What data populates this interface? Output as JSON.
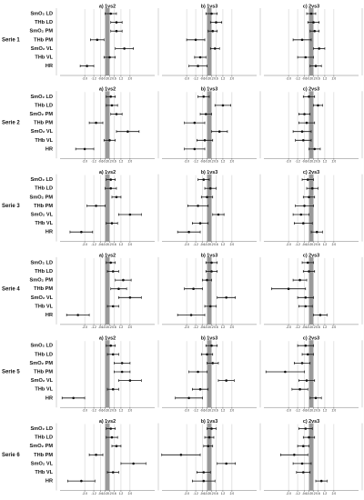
{
  "chart_data": [
    {
      "type": "forest",
      "title": "Serie 1",
      "categories": [
        "SmO₂ LD",
        "THb LD",
        "SmO₂ PM",
        "THb PM",
        "SmO₂ VL",
        "THb VL",
        "HR"
      ],
      "xlim": [
        -4.5,
        4.5
      ],
      "xticks": [
        {
          "value": -2,
          "label": "-2.0"
        },
        -1.2,
        -0.6,
        -0.2,
        0.2,
        0.6,
        1.2,
        {
          "value": 2,
          "label": "2.0"
        }
      ],
      "band": [
        -0.2,
        0.2
      ],
      "panels": [
        {
          "title": "a) 1vs2",
          "values": [
            0.3,
            0.8,
            0.8,
            -0.9,
            1.5,
            0.2,
            -1.8
          ],
          "lower": [
            -0.2,
            0.3,
            0.3,
            -1.5,
            0.7,
            -0.3,
            -2.4
          ],
          "upper": [
            0.8,
            1.3,
            1.3,
            -0.3,
            2.3,
            0.7,
            -1.2
          ]
        },
        {
          "title": "b) 1vs3",
          "values": [
            0.2,
            0.6,
            0.3,
            -1.2,
            0.5,
            -0.8,
            -1.0
          ],
          "lower": [
            -0.3,
            0.1,
            -0.1,
            -2.0,
            0.1,
            -1.3,
            -1.8
          ],
          "upper": [
            0.7,
            1.1,
            0.7,
            -0.4,
            0.9,
            -0.3,
            -0.2
          ]
        },
        {
          "title": "c) 2vs3",
          "values": [
            0,
            0.2,
            0.3,
            -0.8,
            0.7,
            -0.5,
            0.4
          ],
          "lower": [
            -0.4,
            -0.3,
            -0.1,
            -1.6,
            0.2,
            -1.2,
            -0.1
          ],
          "upper": [
            0.4,
            0.7,
            0.7,
            0,
            1.2,
            0.2,
            0.9
          ]
        }
      ]
    },
    {
      "type": "forest",
      "title": "Serie 2",
      "categories": [
        "SmO₂ LD",
        "THb LD",
        "SmO₂ PM",
        "THb PM",
        "SmO₂ VL",
        "THb VL",
        "HR"
      ],
      "xlim": [
        -4.5,
        4.5
      ],
      "xticks": [
        {
          "value": -2,
          "label": "-2.0"
        },
        -1.2,
        -0.6,
        -0.2,
        0.2,
        0.6,
        1.2,
        {
          "value": 2,
          "label": "2.0"
        }
      ],
      "band": [
        -0.2,
        0.2
      ],
      "panels": [
        {
          "title": "a) 1vs2",
          "values": [
            0.3,
            0.4,
            0.8,
            -1.0,
            1.8,
            0.2,
            -2.0
          ],
          "lower": [
            -0.1,
            -0.1,
            0.3,
            -1.6,
            0.8,
            -0.3,
            -2.8
          ],
          "upper": [
            0.7,
            0.9,
            1.3,
            -0.4,
            2.8,
            0.7,
            -1.2
          ]
        },
        {
          "title": "b) 1vs3",
          "values": [
            -0.5,
            1.2,
            -0.3,
            -1.3,
            0.9,
            -0.4,
            -1.3
          ],
          "lower": [
            -1.0,
            0.5,
            -0.8,
            -2.2,
            0.2,
            -1.1,
            -2.2
          ],
          "upper": [
            0,
            1.9,
            0.2,
            -0.4,
            1.6,
            0.3,
            -0.4
          ]
        },
        {
          "title": "c) 2vs3",
          "values": [
            -0.2,
            0.6,
            -0.6,
            -0.4,
            -0.8,
            -0.7,
            0.3
          ],
          "lower": [
            -0.7,
            0.2,
            -1.1,
            -1.1,
            -1.6,
            -1.4,
            -0.2
          ],
          "upper": [
            0.3,
            1.0,
            -0.1,
            0.3,
            0,
            0,
            0.8
          ]
        }
      ]
    },
    {
      "type": "forest",
      "title": "Serie 3",
      "categories": [
        "SmO₂ LD",
        "THb LD",
        "SmO₂ PM",
        "THb PM",
        "SmO₂ VL",
        "THb VL",
        "HR"
      ],
      "xlim": [
        -4.5,
        4.5
      ],
      "xticks": [
        {
          "value": -2,
          "label": "-2.0"
        },
        -1.2,
        -0.6,
        -0.2,
        0.2,
        0.6,
        1.2,
        {
          "value": 2,
          "label": "2.0"
        }
      ],
      "band": [
        -0.2,
        0.2
      ],
      "panels": [
        {
          "title": "a) 1vs2",
          "values": [
            0.3,
            0.3,
            0.8,
            -1.0,
            2.0,
            0.4,
            -2.3
          ],
          "lower": [
            -0.1,
            -0.2,
            0.4,
            -1.8,
            1.0,
            -0.1,
            -3.3
          ],
          "upper": [
            0.7,
            0.8,
            1.2,
            -0.2,
            3.0,
            0.9,
            -1.3
          ]
        },
        {
          "title": "b) 1vs3",
          "values": [
            -0.5,
            0.1,
            -0.2,
            -1.0,
            0.8,
            -0.8,
            -1.8
          ],
          "lower": [
            -1.0,
            -0.4,
            -0.7,
            -1.9,
            0.3,
            -1.5,
            -2.8
          ],
          "upper": [
            0,
            0.6,
            0.3,
            -0.1,
            1.3,
            -0.1,
            -0.8
          ]
        },
        {
          "title": "c) 2vs3",
          "values": [
            -0.3,
            0.1,
            -0.2,
            -0.6,
            -0.9,
            -0.7,
            0.5
          ],
          "lower": [
            -0.8,
            -0.4,
            -0.7,
            -1.4,
            -1.6,
            -1.5,
            0
          ],
          "upper": [
            0.2,
            0.6,
            0.3,
            0.2,
            -0.2,
            0.1,
            1.0
          ]
        }
      ]
    },
    {
      "type": "forest",
      "title": "Serie 4",
      "categories": [
        "SmO₂ LD",
        "THb LD",
        "SmO₂ PM",
        "THb PM",
        "SmO₂ VL",
        "THb VL",
        "HR"
      ],
      "xlim": [
        -4.5,
        4.5
      ],
      "xticks": [
        {
          "value": -2,
          "label": "-2.0"
        },
        -1.2,
        -0.6,
        -0.2,
        0.2,
        0.6,
        1.2,
        {
          "value": 2,
          "label": "2.0"
        }
      ],
      "band": [
        -0.2,
        0.2
      ],
      "panels": [
        {
          "title": "a) 1vs2",
          "values": [
            0.3,
            0.5,
            1.4,
            1.0,
            2.0,
            0.5,
            -2.6
          ],
          "lower": [
            -0.1,
            0,
            0.7,
            0.3,
            1.0,
            0,
            -3.6
          ],
          "upper": [
            0.7,
            1.0,
            2.1,
            1.7,
            3.0,
            1.0,
            -1.6
          ]
        },
        {
          "title": "b) 1vs3",
          "values": [
            0.2,
            0.2,
            -0.2,
            -1.4,
            1.5,
            0.1,
            -1.6
          ],
          "lower": [
            -0.3,
            -0.3,
            -0.6,
            -2.2,
            0.7,
            -0.4,
            -2.8
          ],
          "upper": [
            0.7,
            0.7,
            0.2,
            -0.6,
            2.3,
            0.6,
            -0.4
          ]
        },
        {
          "title": "c) 2vs3",
          "values": [
            -0.3,
            -0.2,
            -1.0,
            -2.0,
            -0.5,
            -0.5,
            0.8
          ],
          "lower": [
            -0.8,
            -0.7,
            -1.6,
            -3.5,
            -1.2,
            -1.1,
            0.2
          ],
          "upper": [
            0.2,
            0.3,
            -0.4,
            -0.5,
            0.2,
            0.1,
            1.4
          ]
        }
      ]
    },
    {
      "type": "forest",
      "title": "Serie 5",
      "categories": [
        "SmO₂ LD",
        "THb LD",
        "SmO₂ PM",
        "THb PM",
        "SmO₂ VL",
        "THb VL",
        "HR"
      ],
      "xlim": [
        -4.5,
        4.5
      ],
      "xticks": [
        {
          "value": -2,
          "label": "-2.0"
        },
        -1.2,
        -0.6,
        -0.2,
        0.2,
        0.6,
        1.2,
        {
          "value": 2,
          "label": "2.0"
        }
      ],
      "band": [
        -0.2,
        0.2
      ],
      "panels": [
        {
          "title": "a) 1vs2",
          "values": [
            0.3,
            0.5,
            1.3,
            1.3,
            2.0,
            0.5,
            -3.0
          ],
          "lower": [
            -0.1,
            0,
            0.6,
            0.6,
            1.0,
            0,
            -4.0
          ],
          "upper": [
            0.7,
            1.0,
            2.0,
            2.0,
            3.0,
            1.0,
            -2.0
          ]
        },
        {
          "title": "b) 1vs3",
          "values": [
            0.2,
            -0.2,
            0.3,
            -1.0,
            1.5,
            -0.8,
            -1.8
          ],
          "lower": [
            -0.3,
            -0.7,
            -0.2,
            -1.8,
            0.8,
            -1.5,
            -3.0
          ],
          "upper": [
            0.7,
            0.3,
            0.8,
            -0.2,
            2.2,
            -0.1,
            -0.6
          ]
        },
        {
          "title": "c) 2vs3",
          "values": [
            -0.5,
            -0.3,
            -0.8,
            -2.3,
            -0.4,
            -1.0,
            0.4
          ],
          "lower": [
            -1.2,
            -0.8,
            -1.5,
            -4.0,
            -1.1,
            -1.7,
            -0.1
          ],
          "upper": [
            0.2,
            0.2,
            -0.1,
            -0.6,
            0.3,
            -0.3,
            0.9
          ]
        }
      ]
    },
    {
      "type": "forest",
      "title": "Serie 6",
      "categories": [
        "SmO₂ LD",
        "THb LD",
        "SmO₂ PM",
        "THb PM",
        "SmO₂ VL",
        "THb VL",
        "HR"
      ],
      "xlim": [
        -4.5,
        4.5
      ],
      "xticks": [
        {
          "value": -2,
          "label": "-2.0"
        },
        -1.2,
        -0.6,
        -0.2,
        0.2,
        0.6,
        1.2,
        {
          "value": 2,
          "label": "2.0"
        }
      ],
      "band": [
        -0.2,
        0.2
      ],
      "panels": [
        {
          "title": "a) 1vs2",
          "values": [
            0.3,
            0.4,
            0.8,
            -1.0,
            2.3,
            0.5,
            -2.3
          ],
          "lower": [
            -0.1,
            -0.1,
            0.4,
            -1.6,
            1.2,
            0,
            -3.5
          ],
          "upper": [
            0.7,
            0.9,
            1.2,
            -0.4,
            3.4,
            1.0,
            -1.1
          ]
        },
        {
          "title": "b) 1vs3",
          "values": [
            0.2,
            0,
            -0.1,
            -2.5,
            1.5,
            -0.5,
            -0.5
          ],
          "lower": [
            -0.2,
            -0.4,
            -0.5,
            -4.2,
            0.7,
            -1.1,
            -1.5
          ],
          "upper": [
            0.6,
            0.4,
            0.3,
            -0.8,
            2.3,
            0.1,
            0.5
          ]
        },
        {
          "title": "c) 2vs3",
          "values": [
            -0.5,
            -0.2,
            -0.7,
            -1.5,
            -0.8,
            -0.7,
            0.9
          ],
          "lower": [
            -1.1,
            -0.7,
            -1.2,
            -2.7,
            -1.6,
            -1.3,
            0.4
          ],
          "upper": [
            0.1,
            0.3,
            -0.2,
            -0.3,
            0,
            -0.1,
            1.4
          ]
        }
      ]
    }
  ]
}
